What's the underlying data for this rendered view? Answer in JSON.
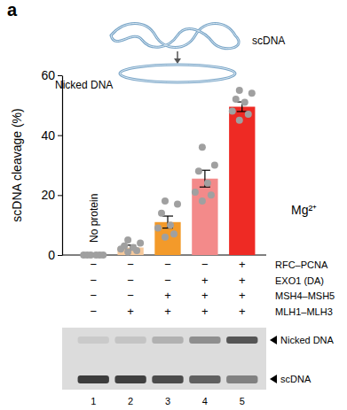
{
  "chart_data": {
    "type": "bar",
    "panel_label": "a",
    "y_label": "scDNA cleavage (%)",
    "categories": [
      "1",
      "2",
      "3",
      "4",
      "5"
    ],
    "values": [
      0,
      2.5,
      11,
      25.5,
      49.5
    ],
    "errors": [
      0,
      0.8,
      2,
      2.8,
      1.6
    ],
    "colors": [
      "#cccccc",
      "#f7c99b",
      "#f39a2a",
      "#f38a8a",
      "#ee2a24"
    ],
    "points": [
      [
        0,
        0,
        0,
        0,
        0,
        0
      ],
      [
        1,
        1.5,
        2,
        2.5,
        3,
        4,
        5
      ],
      [
        6,
        7,
        9,
        10,
        14,
        17,
        18
      ],
      [
        18,
        20,
        21,
        24,
        28,
        30,
        36
      ],
      [
        45,
        47,
        48,
        51,
        52,
        54,
        55
      ]
    ],
    "ylim": [
      0,
      60
    ],
    "yticks": [
      0,
      20,
      40,
      60
    ],
    "annotations": {
      "lane_1": "No protein",
      "ion": "Mg²⁺",
      "schematic_top": "scDNA",
      "schematic_bottom": "Nicked DNA"
    },
    "conditions": [
      {
        "name": "RFC–PCNA",
        "signs": [
          "−",
          "−",
          "−",
          "−",
          "+"
        ]
      },
      {
        "name": "EXO1 (DA)",
        "signs": [
          "−",
          "−",
          "−",
          "+",
          "+"
        ]
      },
      {
        "name": "MSH4–MSH5",
        "signs": [
          "−",
          "−",
          "+",
          "+",
          "+"
        ]
      },
      {
        "name": "MLH1–MLH3",
        "signs": [
          "−",
          "+",
          "+",
          "+",
          "+"
        ]
      }
    ],
    "gel_labels": [
      "Nicked DNA",
      "scDNA"
    ]
  }
}
